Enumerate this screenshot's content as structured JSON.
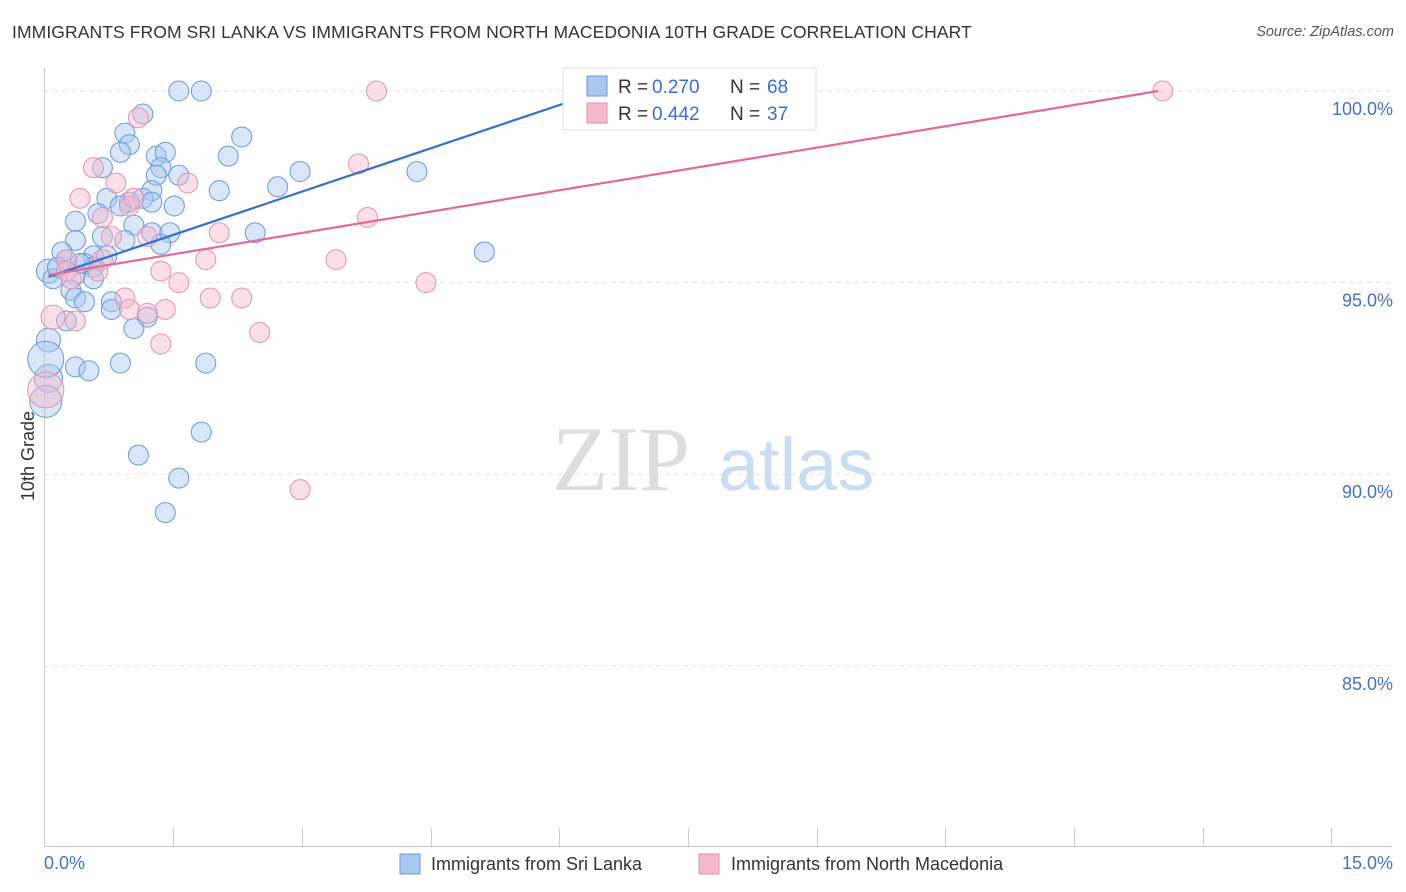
{
  "header": {
    "title": "IMMIGRANTS FROM SRI LANKA VS IMMIGRANTS FROM NORTH MACEDONIA 10TH GRADE CORRELATION CHART",
    "source": "Source: ZipAtlas.com"
  },
  "watermark": {
    "zip": "ZIP",
    "atlas": "atlas"
  },
  "legend_box": {
    "rows": [
      {
        "r_label": "R = ",
        "r_value": "0.270",
        "n_label": "N = ",
        "n_value": "68",
        "color": "#a8c8f0",
        "stroke": "#6699dd"
      },
      {
        "r_label": "R = ",
        "r_value": "0.442",
        "n_label": "N = ",
        "n_value": "37",
        "color": "#f5b8cc",
        "stroke": "#e391ae"
      }
    ]
  },
  "bottom_legend": {
    "items": [
      {
        "label": "Immigrants from Sri Lanka",
        "color": "#a8c8f0",
        "stroke": "#6699dd"
      },
      {
        "label": "Immigrants from North Macedonia",
        "color": "#f5b8cc",
        "stroke": "#e391ae"
      }
    ]
  },
  "chart_data": {
    "type": "scatter",
    "title": "IMMIGRANTS FROM SRI LANKA VS IMMIGRANTS FROM NORTH MACEDONIA 10TH GRADE CORRELATION CHART",
    "xlabel": "",
    "ylabel": "10th Grade",
    "xlim": [
      0,
      15
    ],
    "ylim": [
      80.3,
      100.6
    ],
    "x_tick_labels": [
      "0.0%",
      "15.0%"
    ],
    "y_ticks": [
      85,
      90,
      95,
      100
    ],
    "y_tick_labels": [
      "85.0%",
      "90.0%",
      "95.0%",
      "100.0%"
    ],
    "grid": true,
    "series": [
      {
        "name": "Immigrants from Sri Lanka",
        "color": "#a8c8f0",
        "stroke": "#6699dd",
        "line_color": "#3370d0",
        "R": 0.27,
        "N": 68,
        "trend": {
          "x0": 0.05,
          "y0": 95.15,
          "x1": 6.2,
          "y1": 100.0
        },
        "points": [
          [
            1.5,
            100.0
          ],
          [
            1.75,
            100.0
          ],
          [
            1.1,
            99.4
          ],
          [
            0.9,
            98.9
          ],
          [
            2.2,
            98.8
          ],
          [
            0.95,
            98.6
          ],
          [
            0.85,
            98.4
          ],
          [
            1.25,
            98.3
          ],
          [
            1.35,
            98.4
          ],
          [
            2.05,
            98.3
          ],
          [
            0.65,
            98.0
          ],
          [
            1.3,
            98.0
          ],
          [
            1.25,
            97.8
          ],
          [
            1.5,
            97.8
          ],
          [
            2.85,
            97.9
          ],
          [
            4.15,
            97.9
          ],
          [
            1.95,
            97.4
          ],
          [
            2.6,
            97.5
          ],
          [
            1.2,
            97.4
          ],
          [
            0.7,
            97.2
          ],
          [
            1.1,
            97.2
          ],
          [
            0.95,
            97.1
          ],
          [
            1.2,
            97.1
          ],
          [
            0.85,
            97.0
          ],
          [
            0.6,
            96.8
          ],
          [
            0.35,
            96.6
          ],
          [
            1.0,
            96.5
          ],
          [
            1.2,
            96.3
          ],
          [
            1.4,
            96.3
          ],
          [
            2.35,
            96.3
          ],
          [
            0.35,
            96.1
          ],
          [
            0.65,
            96.2
          ],
          [
            1.3,
            96.0
          ],
          [
            0.2,
            95.8
          ],
          [
            0.55,
            95.7
          ],
          [
            0.7,
            95.7
          ],
          [
            0.25,
            95.6
          ],
          [
            4.9,
            95.8
          ],
          [
            0.45,
            95.5
          ],
          [
            0.55,
            95.4
          ],
          [
            0.05,
            95.3
          ],
          [
            0.35,
            95.2
          ],
          [
            0.55,
            95.1
          ],
          [
            0.1,
            95.1
          ],
          [
            0.3,
            94.8
          ],
          [
            0.35,
            94.6
          ],
          [
            0.45,
            94.5
          ],
          [
            0.75,
            94.5
          ],
          [
            0.75,
            94.3
          ],
          [
            1.15,
            94.1
          ],
          [
            1.0,
            93.8
          ],
          [
            0.25,
            94.0
          ],
          [
            0.05,
            93.5
          ],
          [
            0.85,
            92.9
          ],
          [
            1.8,
            92.9
          ],
          [
            0.35,
            92.8
          ],
          [
            0.5,
            92.7
          ],
          [
            0.05,
            92.5
          ],
          [
            0.02,
            91.9
          ],
          [
            1.75,
            91.1
          ],
          [
            1.05,
            90.5
          ],
          [
            1.5,
            89.9
          ],
          [
            1.35,
            89.0
          ],
          [
            0.15,
            95.4
          ],
          [
            0.4,
            95.5
          ],
          [
            0.9,
            96.1
          ],
          [
            0.02,
            93.0
          ],
          [
            1.45,
            97.0
          ]
        ],
        "sizes": [
          10,
          10,
          10,
          10,
          10,
          10,
          10,
          10,
          10,
          10,
          10,
          10,
          10,
          10,
          10,
          10,
          10,
          10,
          10,
          10,
          10,
          10,
          10,
          10,
          10,
          10,
          10,
          10,
          10,
          10,
          10,
          10,
          10,
          10,
          10,
          10,
          10,
          10,
          10,
          10,
          12,
          10,
          10,
          10,
          10,
          10,
          10,
          10,
          10,
          10,
          10,
          10,
          12,
          10,
          10,
          10,
          10,
          14,
          16,
          10,
          10,
          10,
          10,
          10,
          10,
          10,
          18,
          10
        ]
      },
      {
        "name": "Immigrants from North Macedonia",
        "color": "#f5b8cc",
        "stroke": "#e391ae",
        "line_color": "#e36a96",
        "R": 0.442,
        "N": 37,
        "trend": {
          "x0": 0.05,
          "y0": 95.2,
          "x1": 12.4,
          "y1": 100.0
        },
        "points": [
          [
            3.7,
            100.0
          ],
          [
            7.1,
            100.0
          ],
          [
            12.45,
            100.0
          ],
          [
            1.05,
            99.3
          ],
          [
            3.5,
            98.1
          ],
          [
            0.55,
            98.0
          ],
          [
            1.6,
            97.6
          ],
          [
            0.8,
            97.6
          ],
          [
            0.4,
            97.2
          ],
          [
            0.95,
            97.0
          ],
          [
            1.0,
            97.2
          ],
          [
            3.6,
            96.7
          ],
          [
            0.65,
            96.7
          ],
          [
            1.95,
            96.3
          ],
          [
            0.75,
            96.2
          ],
          [
            1.15,
            96.2
          ],
          [
            0.65,
            95.6
          ],
          [
            1.8,
            95.6
          ],
          [
            3.25,
            95.6
          ],
          [
            0.25,
            95.6
          ],
          [
            0.25,
            95.3
          ],
          [
            0.6,
            95.3
          ],
          [
            1.3,
            95.3
          ],
          [
            0.3,
            95.1
          ],
          [
            1.5,
            95.0
          ],
          [
            4.25,
            95.0
          ],
          [
            0.9,
            94.6
          ],
          [
            1.85,
            94.6
          ],
          [
            2.2,
            94.6
          ],
          [
            0.95,
            94.3
          ],
          [
            1.35,
            94.3
          ],
          [
            1.15,
            94.2
          ],
          [
            0.1,
            94.1
          ],
          [
            0.35,
            94.0
          ],
          [
            2.4,
            93.7
          ],
          [
            1.3,
            93.4
          ],
          [
            2.85,
            89.6
          ]
        ],
        "sizes": [
          10,
          10,
          10,
          10,
          10,
          10,
          10,
          10,
          10,
          10,
          10,
          10,
          10,
          10,
          10,
          10,
          10,
          10,
          10,
          10,
          10,
          10,
          10,
          10,
          10,
          10,
          10,
          10,
          10,
          10,
          10,
          10,
          12,
          10,
          10,
          10,
          10
        ]
      },
      {
        "name": "Immigrants from North Macedonia (large)",
        "color": "#f5b8cc",
        "stroke": "#e391ae",
        "points": [
          [
            0.02,
            92.2
          ]
        ],
        "sizes": [
          18
        ]
      }
    ]
  }
}
